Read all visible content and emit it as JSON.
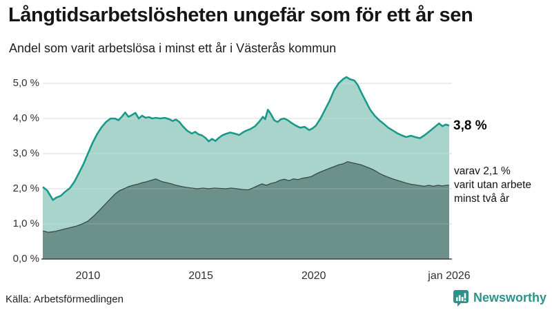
{
  "header": {},
  "chart_data": {
    "type": "area",
    "title": "Långtidsarbetslösheten ungefär som för ett år sen",
    "subtitle": "Andel som varit arbetslösa i minst ett år i Västerås kommun",
    "xlabel": "",
    "ylabel": "",
    "ylim": [
      0,
      5.5
    ],
    "x_domain": [
      2008,
      2026
    ],
    "grid": true,
    "legend_position": "none",
    "colors": {
      "series1_line": "#18998a",
      "series1_fill": "#a9d4cc",
      "series2_line": "#384a44",
      "series2_fill": "#6b918a",
      "gridline": "#d9dde2",
      "baseline": "#3f3f3f",
      "brand_teal": "#2d938a"
    },
    "yticks": [
      {
        "value": 0,
        "label": "0,0 %"
      },
      {
        "value": 1,
        "label": "1,0 %"
      },
      {
        "value": 2,
        "label": "2,0 %"
      },
      {
        "value": 3,
        "label": "3,0 %"
      },
      {
        "value": 4,
        "label": "4,0 %"
      },
      {
        "value": 5,
        "label": "5,0 %"
      }
    ],
    "xticks": [
      {
        "value": 2010,
        "label": "2010"
      },
      {
        "value": 2015,
        "label": "2015"
      },
      {
        "value": 2020,
        "label": "2020"
      },
      {
        "value": 2026,
        "label": "jan 2026"
      }
    ],
    "series": [
      {
        "name": "arbetslösa minst ett år",
        "end_value_label": "3,8 %",
        "points": [
          [
            2008.0,
            2.05
          ],
          [
            2008.2,
            1.95
          ],
          [
            2008.45,
            1.68
          ],
          [
            2008.6,
            1.75
          ],
          [
            2008.8,
            1.8
          ],
          [
            2009.0,
            1.92
          ],
          [
            2009.2,
            2.02
          ],
          [
            2009.4,
            2.2
          ],
          [
            2009.6,
            2.45
          ],
          [
            2009.8,
            2.7
          ],
          [
            2010.0,
            3.0
          ],
          [
            2010.2,
            3.3
          ],
          [
            2010.4,
            3.55
          ],
          [
            2010.6,
            3.75
          ],
          [
            2010.8,
            3.9
          ],
          [
            2011.0,
            4.0
          ],
          [
            2011.2,
            4.0
          ],
          [
            2011.35,
            3.95
          ],
          [
            2011.5,
            4.05
          ],
          [
            2011.65,
            4.17
          ],
          [
            2011.8,
            4.05
          ],
          [
            2011.95,
            4.1
          ],
          [
            2012.1,
            4.16
          ],
          [
            2012.25,
            4.0
          ],
          [
            2012.4,
            4.08
          ],
          [
            2012.55,
            4.02
          ],
          [
            2012.7,
            4.04
          ],
          [
            2012.85,
            4.0
          ],
          [
            2013.0,
            4.02
          ],
          [
            2013.2,
            4.0
          ],
          [
            2013.4,
            4.02
          ],
          [
            2013.6,
            3.98
          ],
          [
            2013.75,
            3.93
          ],
          [
            2013.9,
            3.97
          ],
          [
            2014.05,
            3.9
          ],
          [
            2014.2,
            3.78
          ],
          [
            2014.4,
            3.65
          ],
          [
            2014.6,
            3.57
          ],
          [
            2014.75,
            3.62
          ],
          [
            2014.9,
            3.55
          ],
          [
            2015.05,
            3.52
          ],
          [
            2015.2,
            3.45
          ],
          [
            2015.35,
            3.35
          ],
          [
            2015.5,
            3.42
          ],
          [
            2015.65,
            3.36
          ],
          [
            2015.8,
            3.45
          ],
          [
            2015.95,
            3.52
          ],
          [
            2016.1,
            3.56
          ],
          [
            2016.3,
            3.6
          ],
          [
            2016.5,
            3.57
          ],
          [
            2016.7,
            3.53
          ],
          [
            2016.85,
            3.6
          ],
          [
            2017.0,
            3.65
          ],
          [
            2017.2,
            3.7
          ],
          [
            2017.4,
            3.78
          ],
          [
            2017.6,
            3.92
          ],
          [
            2017.75,
            4.05
          ],
          [
            2017.85,
            3.98
          ],
          [
            2017.97,
            4.25
          ],
          [
            2018.1,
            4.13
          ],
          [
            2018.25,
            3.95
          ],
          [
            2018.4,
            3.9
          ],
          [
            2018.55,
            3.98
          ],
          [
            2018.7,
            4.0
          ],
          [
            2018.85,
            3.95
          ],
          [
            2019.0,
            3.88
          ],
          [
            2019.2,
            3.8
          ],
          [
            2019.4,
            3.74
          ],
          [
            2019.6,
            3.76
          ],
          [
            2019.8,
            3.67
          ],
          [
            2019.95,
            3.72
          ],
          [
            2020.1,
            3.8
          ],
          [
            2020.3,
            4.0
          ],
          [
            2020.5,
            4.25
          ],
          [
            2020.7,
            4.5
          ],
          [
            2020.9,
            4.8
          ],
          [
            2021.1,
            5.0
          ],
          [
            2021.3,
            5.12
          ],
          [
            2021.45,
            5.18
          ],
          [
            2021.6,
            5.12
          ],
          [
            2021.8,
            5.08
          ],
          [
            2021.95,
            4.95
          ],
          [
            2022.1,
            4.75
          ],
          [
            2022.3,
            4.5
          ],
          [
            2022.5,
            4.25
          ],
          [
            2022.7,
            4.08
          ],
          [
            2022.9,
            3.95
          ],
          [
            2023.1,
            3.85
          ],
          [
            2023.3,
            3.74
          ],
          [
            2023.5,
            3.66
          ],
          [
            2023.7,
            3.58
          ],
          [
            2023.9,
            3.52
          ],
          [
            2024.1,
            3.47
          ],
          [
            2024.3,
            3.51
          ],
          [
            2024.5,
            3.47
          ],
          [
            2024.7,
            3.44
          ],
          [
            2024.9,
            3.52
          ],
          [
            2025.1,
            3.62
          ],
          [
            2025.25,
            3.7
          ],
          [
            2025.4,
            3.78
          ],
          [
            2025.55,
            3.86
          ],
          [
            2025.7,
            3.78
          ],
          [
            2025.85,
            3.83
          ],
          [
            2026.0,
            3.8
          ]
        ]
      },
      {
        "name": "varav utan arbete minst två år",
        "end_value_label": "2,1 %",
        "points": [
          [
            2008.0,
            0.8
          ],
          [
            2008.25,
            0.76
          ],
          [
            2008.5,
            0.78
          ],
          [
            2008.75,
            0.82
          ],
          [
            2009.0,
            0.86
          ],
          [
            2009.25,
            0.9
          ],
          [
            2009.5,
            0.94
          ],
          [
            2009.75,
            1.0
          ],
          [
            2010.0,
            1.08
          ],
          [
            2010.25,
            1.22
          ],
          [
            2010.5,
            1.38
          ],
          [
            2010.75,
            1.55
          ],
          [
            2011.0,
            1.72
          ],
          [
            2011.2,
            1.85
          ],
          [
            2011.4,
            1.95
          ],
          [
            2011.6,
            2.0
          ],
          [
            2011.8,
            2.06
          ],
          [
            2012.0,
            2.1
          ],
          [
            2012.2,
            2.13
          ],
          [
            2012.4,
            2.17
          ],
          [
            2012.6,
            2.2
          ],
          [
            2012.8,
            2.24
          ],
          [
            2013.0,
            2.28
          ],
          [
            2013.15,
            2.24
          ],
          [
            2013.3,
            2.2
          ],
          [
            2013.5,
            2.17
          ],
          [
            2013.7,
            2.14
          ],
          [
            2013.9,
            2.1
          ],
          [
            2014.1,
            2.07
          ],
          [
            2014.35,
            2.04
          ],
          [
            2014.6,
            2.02
          ],
          [
            2014.85,
            2.0
          ],
          [
            2015.1,
            2.02
          ],
          [
            2015.35,
            2.0
          ],
          [
            2015.6,
            2.02
          ],
          [
            2015.85,
            2.01
          ],
          [
            2016.1,
            2.0
          ],
          [
            2016.35,
            2.02
          ],
          [
            2016.6,
            2.0
          ],
          [
            2016.85,
            1.98
          ],
          [
            2017.1,
            1.97
          ],
          [
            2017.3,
            2.02
          ],
          [
            2017.5,
            2.08
          ],
          [
            2017.7,
            2.14
          ],
          [
            2017.9,
            2.1
          ],
          [
            2018.1,
            2.15
          ],
          [
            2018.3,
            2.18
          ],
          [
            2018.5,
            2.24
          ],
          [
            2018.7,
            2.27
          ],
          [
            2018.9,
            2.23
          ],
          [
            2019.1,
            2.28
          ],
          [
            2019.3,
            2.26
          ],
          [
            2019.5,
            2.3
          ],
          [
            2019.7,
            2.32
          ],
          [
            2019.9,
            2.35
          ],
          [
            2020.1,
            2.42
          ],
          [
            2020.3,
            2.48
          ],
          [
            2020.5,
            2.53
          ],
          [
            2020.7,
            2.58
          ],
          [
            2020.9,
            2.63
          ],
          [
            2021.1,
            2.68
          ],
          [
            2021.3,
            2.71
          ],
          [
            2021.5,
            2.77
          ],
          [
            2021.7,
            2.74
          ],
          [
            2021.9,
            2.71
          ],
          [
            2022.1,
            2.68
          ],
          [
            2022.3,
            2.63
          ],
          [
            2022.5,
            2.58
          ],
          [
            2022.7,
            2.52
          ],
          [
            2022.9,
            2.44
          ],
          [
            2023.1,
            2.38
          ],
          [
            2023.3,
            2.33
          ],
          [
            2023.5,
            2.28
          ],
          [
            2023.7,
            2.24
          ],
          [
            2023.9,
            2.2
          ],
          [
            2024.1,
            2.16
          ],
          [
            2024.3,
            2.13
          ],
          [
            2024.5,
            2.11
          ],
          [
            2024.7,
            2.09
          ],
          [
            2024.9,
            2.07
          ],
          [
            2025.1,
            2.1
          ],
          [
            2025.3,
            2.07
          ],
          [
            2025.5,
            2.1
          ],
          [
            2025.7,
            2.08
          ],
          [
            2025.9,
            2.1
          ],
          [
            2026.0,
            2.1
          ]
        ]
      }
    ]
  },
  "annotations": {
    "latest_value": "3,8 %",
    "secondary_lines": [
      "varav 2,1 %",
      "varit utan arbete",
      "minst två år"
    ]
  },
  "footer": {
    "source": "Källa: Arbetsförmedlingen",
    "brand_name": "Newsworthy"
  }
}
